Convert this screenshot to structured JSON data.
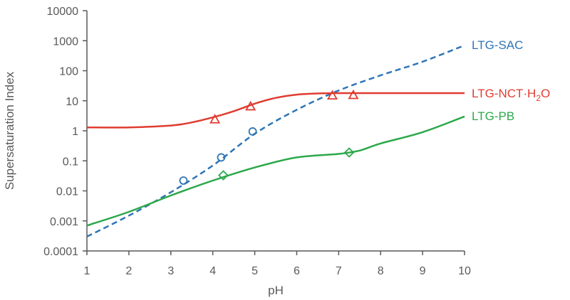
{
  "chart_data": {
    "type": "line",
    "title": "",
    "xlabel": "pH",
    "ylabel": "Supersaturation Index",
    "xlim": [
      1,
      10
    ],
    "ylim": [
      0.0001,
      10000
    ],
    "y_scale": "log",
    "grid": false,
    "x_ticks": [
      "1",
      "2",
      "3",
      "4",
      "5",
      "6",
      "7",
      "8",
      "9",
      "10"
    ],
    "y_ticks": [
      "0.0001",
      "0.001",
      "0.01",
      "0.1",
      "1",
      "10",
      "100",
      "1000",
      "10000"
    ],
    "series": [
      {
        "name": "LTG-SAC",
        "color": "#2e75b6",
        "line_style": "dashed",
        "marker": "circle",
        "curve": [
          [
            1,
            0.0003
          ],
          [
            2,
            0.0015
          ],
          [
            3,
            0.009
          ],
          [
            4,
            0.07
          ],
          [
            5,
            0.8
          ],
          [
            6,
            5
          ],
          [
            7,
            22
          ],
          [
            8,
            70
          ],
          [
            9,
            200
          ],
          [
            10,
            700
          ]
        ],
        "points": [
          [
            3.3,
            0.022
          ],
          [
            4.2,
            0.13
          ],
          [
            4.95,
            0.95
          ]
        ]
      },
      {
        "name": "LTG-NCT·H2O",
        "label_parts": {
          "main": "LTG-NCT·H",
          "sub": "2",
          "end": "O"
        },
        "color": "#e03c31",
        "line_style": "solid",
        "marker": "triangle",
        "curve": [
          [
            1,
            1.3
          ],
          [
            2,
            1.3
          ],
          [
            3,
            1.5
          ],
          [
            3.5,
            1.9
          ],
          [
            4,
            2.8
          ],
          [
            4.5,
            4.5
          ],
          [
            5,
            8
          ],
          [
            5.5,
            12.5
          ],
          [
            6,
            16
          ],
          [
            6.5,
            17.5
          ],
          [
            7,
            18
          ],
          [
            8,
            18
          ],
          [
            9,
            18
          ],
          [
            10,
            18
          ]
        ],
        "points": [
          [
            4.05,
            2.4
          ],
          [
            4.9,
            6.5
          ],
          [
            6.85,
            15
          ],
          [
            7.35,
            15.5
          ]
        ]
      },
      {
        "name": "LTG-PB",
        "color": "#2ca84a",
        "line_style": "solid",
        "marker": "diamond",
        "curve": [
          [
            1,
            0.0007
          ],
          [
            2,
            0.002
          ],
          [
            3,
            0.007
          ],
          [
            4,
            0.022
          ],
          [
            5,
            0.06
          ],
          [
            6,
            0.13
          ],
          [
            7,
            0.17
          ],
          [
            7.5,
            0.22
          ],
          [
            8,
            0.38
          ],
          [
            9,
            0.9
          ],
          [
            10,
            3
          ]
        ],
        "points": [
          [
            4.25,
            0.033
          ],
          [
            7.25,
            0.19
          ]
        ]
      }
    ]
  }
}
